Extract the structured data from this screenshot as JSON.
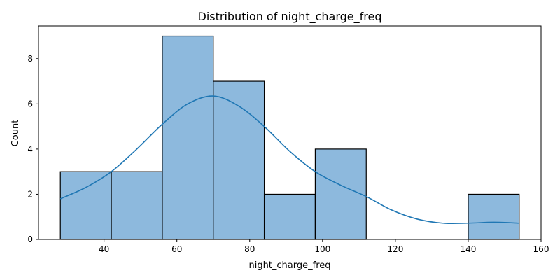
{
  "chart_data": {
    "type": "bar",
    "title": "Distribution of night_charge_freq",
    "xlabel": "night_charge_freq",
    "ylabel": "Count",
    "xlim": [
      22,
      160
    ],
    "ylim": [
      0,
      9.45
    ],
    "xticks": [
      40,
      60,
      80,
      100,
      120,
      140,
      160
    ],
    "yticks": [
      0,
      2,
      4,
      6,
      8
    ],
    "bins": [
      {
        "x0": 28,
        "x1": 42,
        "count": 3
      },
      {
        "x0": 42,
        "x1": 56,
        "count": 3
      },
      {
        "x0": 56,
        "x1": 70,
        "count": 9
      },
      {
        "x0": 70,
        "x1": 84,
        "count": 7
      },
      {
        "x0": 84,
        "x1": 98,
        "count": 2
      },
      {
        "x0": 98,
        "x1": 112,
        "count": 4
      },
      {
        "x0": 112,
        "x1": 126,
        "count": 0
      },
      {
        "x0": 126,
        "x1": 140,
        "count": 0
      },
      {
        "x0": 140,
        "x1": 154,
        "count": 2
      }
    ],
    "kde": {
      "x": [
        28,
        35,
        42,
        49,
        56,
        63,
        70,
        77,
        84,
        91,
        98,
        105,
        112,
        119,
        126,
        133,
        140,
        147,
        154
      ],
      "y": [
        1.8,
        2.3,
        3.0,
        4.0,
        5.1,
        6.0,
        6.35,
        5.9,
        5.0,
        3.9,
        3.0,
        2.4,
        1.9,
        1.3,
        0.9,
        0.72,
        0.72,
        0.76,
        0.72
      ]
    },
    "bar_color": "#8db9dd",
    "bar_edge": "#000000",
    "line_color": "#1f77b4",
    "grid": false
  }
}
